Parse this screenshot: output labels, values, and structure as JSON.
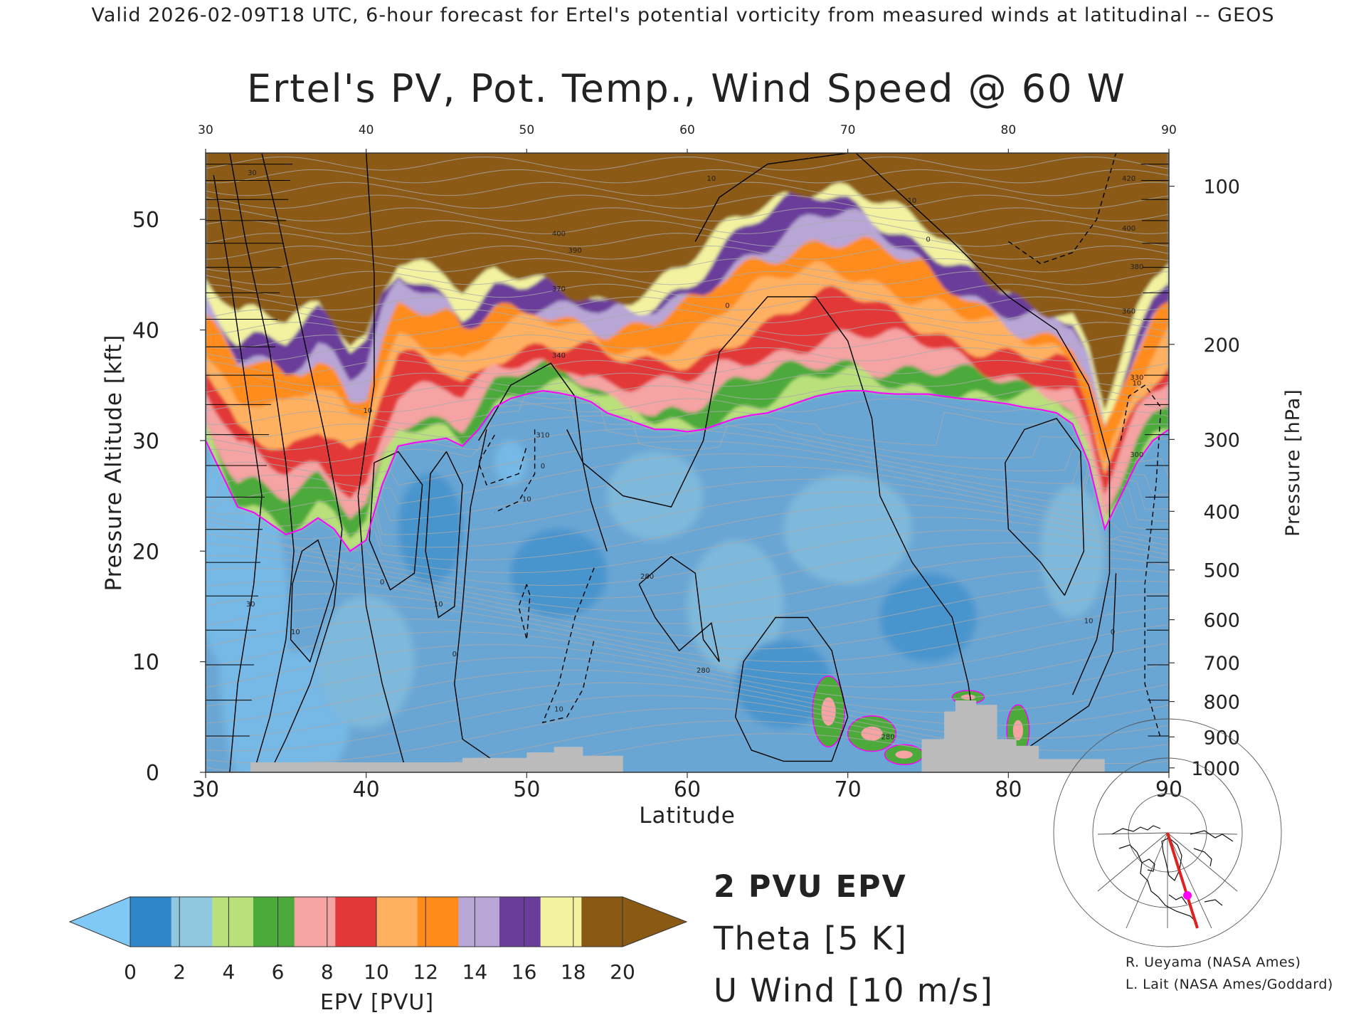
{
  "header": {
    "valid_line": "Valid 2026-02-09T18 UTC, 6-hour forecast for Ertel's potential vorticity from measured winds at latitudinal -- GEOS"
  },
  "chart_data": {
    "type": "heatmap",
    "title": "Ertel's PV, Pot. Temp., Wind Speed @ 60 W",
    "xlabel": "Latitude",
    "ylabel_left": "Pressure Altitude [kft]",
    "ylabel_right": "Pressure [hPa]",
    "xlim": [
      30,
      90
    ],
    "ylim": [
      0,
      56
    ],
    "x_ticks": [
      30,
      40,
      50,
      60,
      70,
      80,
      90
    ],
    "y_ticks": [
      0,
      10,
      20,
      30,
      40,
      50
    ],
    "pressure_ticks": [
      {
        "hpa": "100",
        "kft": 53.0
      },
      {
        "hpa": "200",
        "kft": 38.7
      },
      {
        "hpa": "300",
        "kft": 30.1
      },
      {
        "hpa": "400",
        "kft": 23.6
      },
      {
        "hpa": "500",
        "kft": 18.3
      },
      {
        "hpa": "600",
        "kft": 13.8
      },
      {
        "hpa": "700",
        "kft": 9.9
      },
      {
        "hpa": "800",
        "kft": 6.4
      },
      {
        "hpa": "900",
        "kft": 3.2
      },
      {
        "hpa": "1000",
        "kft": 0.4
      }
    ],
    "tropopause_2pvu_kft": [
      [
        30,
        30
      ],
      [
        31,
        27
      ],
      [
        32,
        24
      ],
      [
        33,
        23.5
      ],
      [
        34,
        22.5
      ],
      [
        35,
        21.5
      ],
      [
        36,
        22
      ],
      [
        37,
        23
      ],
      [
        38,
        22
      ],
      [
        39,
        20
      ],
      [
        40,
        21
      ],
      [
        41,
        26
      ],
      [
        42,
        29.5
      ],
      [
        43,
        29.8
      ],
      [
        44,
        30
      ],
      [
        45,
        30.2
      ],
      [
        46,
        29.5
      ],
      [
        47,
        31
      ],
      [
        48,
        33
      ],
      [
        49,
        33.8
      ],
      [
        50,
        34.2
      ],
      [
        51,
        34.5
      ],
      [
        52,
        34.3
      ],
      [
        53,
        34
      ],
      [
        54,
        33.5
      ],
      [
        55,
        32.5
      ],
      [
        56,
        32
      ],
      [
        57,
        31.5
      ],
      [
        58,
        31
      ],
      [
        59,
        31
      ],
      [
        60,
        30.8
      ],
      [
        61,
        31
      ],
      [
        62,
        31.5
      ],
      [
        63,
        32
      ],
      [
        64,
        32.3
      ],
      [
        65,
        32.5
      ],
      [
        66,
        33
      ],
      [
        67,
        33.5
      ],
      [
        68,
        34
      ],
      [
        69,
        34.3
      ],
      [
        70,
        34.5
      ],
      [
        71,
        34.5
      ],
      [
        72,
        34.3
      ],
      [
        73,
        34.2
      ],
      [
        74,
        34.2
      ],
      [
        75,
        34.2
      ],
      [
        76,
        34
      ],
      [
        77,
        33.8
      ],
      [
        78,
        33.7
      ],
      [
        79,
        33.5
      ],
      [
        80,
        33.3
      ],
      [
        81,
        33
      ],
      [
        82,
        32.8
      ],
      [
        83,
        32.5
      ],
      [
        84,
        31.5
      ],
      [
        85,
        28
      ],
      [
        86,
        22
      ],
      [
        87,
        25
      ],
      [
        88,
        28
      ],
      [
        89,
        30
      ],
      [
        90,
        31
      ]
    ],
    "pv_levels": [
      0,
      2,
      4,
      6,
      8,
      10,
      12,
      14,
      16,
      18,
      20
    ],
    "pv_band_colors": [
      "#2f86c8",
      "#90c8e0",
      "#b9e07a",
      "#4caa3a",
      "#f5a3a3",
      "#e23838",
      "#ffb060",
      "#ff8c1a",
      "#b8a6d6",
      "#6a3d9a",
      "#f2f2a0",
      "#8a5a14"
    ],
    "pv_under_color": "#80c8f5",
    "pv_over_color": "#8a5a14",
    "tropopause_color": "#ff00ff",
    "theta_color": "#aaaaaa",
    "wind_color": "#000000",
    "terrain_color": "#bbbbbb",
    "terrain_kft": [
      [
        32.8,
        0.9
      ],
      [
        46,
        0.9
      ],
      [
        46,
        1.3
      ],
      [
        50,
        1.3
      ],
      [
        50,
        1.8
      ],
      [
        51.7,
        1.8
      ],
      [
        51.7,
        2.3
      ],
      [
        53.5,
        2.3
      ],
      [
        53.5,
        1.5
      ],
      [
        56,
        1.5
      ],
      [
        56,
        0
      ],
      [
        74.6,
        0
      ],
      [
        74.6,
        3
      ],
      [
        76,
        3
      ],
      [
        76,
        5.5
      ],
      [
        76.7,
        5.5
      ],
      [
        76.7,
        6.5
      ],
      [
        78,
        6.5
      ],
      [
        78,
        6.1
      ],
      [
        79.3,
        6.1
      ],
      [
        79.3,
        3
      ],
      [
        80.5,
        3
      ],
      [
        80.5,
        2.4
      ],
      [
        81.9,
        2.4
      ],
      [
        81.9,
        1.2
      ],
      [
        86,
        1.2
      ]
    ],
    "wind_contour_labels": [
      {
        "text": "10",
        "x": 40.1,
        "y": 32.5
      },
      {
        "text": "30",
        "x": 32.9,
        "y": 54
      },
      {
        "text": "30",
        "x": 32.8,
        "y": 15
      },
      {
        "text": "10",
        "x": 35.6,
        "y": 12.5
      },
      {
        "text": "0",
        "x": 41.0,
        "y": 17
      },
      {
        "text": "10",
        "x": 44.5,
        "y": 15
      },
      {
        "text": "0",
        "x": 45.5,
        "y": 10.5
      },
      {
        "text": "10",
        "x": 50.0,
        "y": 24.5
      },
      {
        "text": "0",
        "x": 51.0,
        "y": 27.5
      },
      {
        "text": "10",
        "x": 61.5,
        "y": 53.5
      },
      {
        "text": "0",
        "x": 62.5,
        "y": 42
      },
      {
        "text": "10",
        "x": 74.0,
        "y": 51.5
      },
      {
        "text": "0",
        "x": 75.0,
        "y": 48
      },
      {
        "text": "10",
        "x": 85.0,
        "y": 13.5
      },
      {
        "text": "0",
        "x": 86.5,
        "y": 12.5
      },
      {
        "text": "10",
        "x": 52.0,
        "y": 5.5
      },
      {
        "text": "10",
        "x": 88.0,
        "y": 35
      }
    ],
    "theta_labels": [
      {
        "text": "400",
        "x": 52,
        "y": 48.5
      },
      {
        "text": "390",
        "x": 53,
        "y": 47
      },
      {
        "text": "370",
        "x": 52,
        "y": 43.5
      },
      {
        "text": "340",
        "x": 52,
        "y": 37.5
      },
      {
        "text": "310",
        "x": 51,
        "y": 30.3
      },
      {
        "text": "280",
        "x": 57.5,
        "y": 17.5
      },
      {
        "text": "280",
        "x": 61,
        "y": 9
      },
      {
        "text": "420",
        "x": 87.5,
        "y": 53.5
      },
      {
        "text": "400",
        "x": 87.5,
        "y": 49
      },
      {
        "text": "380",
        "x": 88,
        "y": 45.5
      },
      {
        "text": "360",
        "x": 87.5,
        "y": 41.5
      },
      {
        "text": "330",
        "x": 88,
        "y": 35.5
      },
      {
        "text": "300",
        "x": 88,
        "y": 28.5
      },
      {
        "text": "280",
        "x": 72.5,
        "y": 3
      }
    ]
  },
  "colorbar": {
    "tick_labels": [
      "0",
      "2",
      "4",
      "6",
      "8",
      "10",
      "12",
      "14",
      "16",
      "18",
      "20"
    ],
    "label": "EPV [PVU]"
  },
  "legend": {
    "pv_label": "2 PVU EPV",
    "theta_label": "Theta [5 K]",
    "wind_label": "U Wind [10 m/s]"
  },
  "credits": {
    "line1": "R. Ueyama (NASA Ames)",
    "line2": "L. Lait (NASA Ames/Goddard)"
  }
}
